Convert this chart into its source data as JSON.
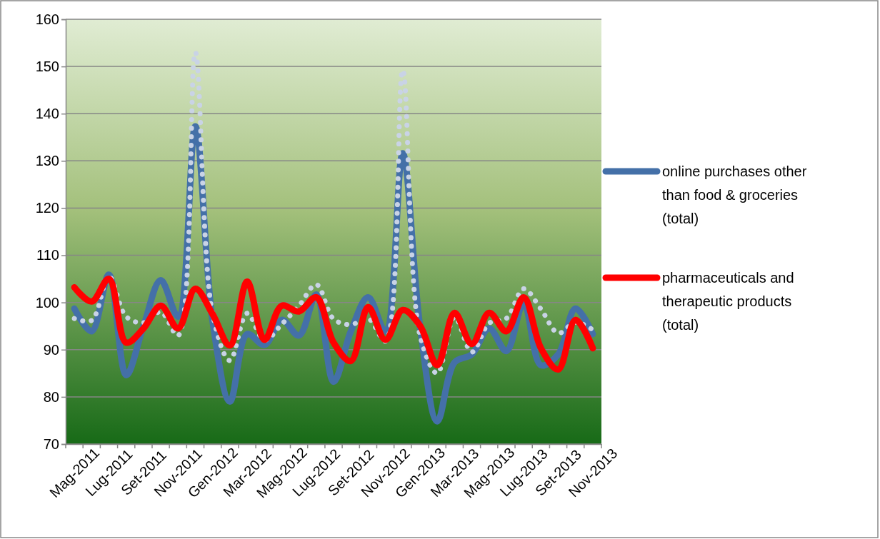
{
  "chart_data": {
    "type": "line",
    "categories": [
      "Mag-2011",
      null,
      "Lug-2011",
      null,
      "Set-2011",
      null,
      "Nov-2011",
      null,
      "Gen-2012",
      null,
      "Mar-2012",
      null,
      "Mag-2012",
      null,
      "Lug-2012",
      null,
      "Set-2012",
      null,
      "Nov-2012",
      null,
      "Gen-2013",
      null,
      "Mar-2013",
      null,
      "Mag-2013",
      null,
      "Lug-2013",
      null,
      "Set-2013",
      null,
      "Nov-2013"
    ],
    "series": [
      {
        "name": "online purchases other than food & groceries (total)",
        "color": "#4470a8",
        "line_style": "solid",
        "values": [
          98.7,
          93.9,
          105.9,
          84.6,
          95,
          104.7,
          97,
          137.3,
          96,
          79,
          93.3,
          91,
          96.3,
          93,
          101.7,
          83.2,
          93.9,
          101.1,
          93.9,
          131.6,
          95,
          74.8,
          87.3,
          89,
          94.5,
          89.7,
          99.9,
          86.7,
          89,
          98.7,
          93.3
        ]
      },
      {
        "color": "#c9d3e6",
        "line_style": "dotted",
        "values": [
          96.6,
          96.2,
          105.5,
          97,
          95.7,
          98,
          93,
          153,
          97.5,
          87.7,
          97.7,
          92,
          95.4,
          99.3,
          103.8,
          96.5,
          95.3,
          96.6,
          91.8,
          149.2,
          93,
          85,
          96.9,
          89.5,
          95.6,
          96.6,
          102.9,
          98.6,
          93.5,
          95.8,
          94.2
        ]
      },
      {
        "name": "pharmaceuticals and therapeutic products (total)",
        "color": "#ff0000",
        "line_style": "solid",
        "values": [
          103.2,
          100.2,
          105,
          91.5,
          94.5,
          99.3,
          94.5,
          102.9,
          97.5,
          90.9,
          104.4,
          92.1,
          99.3,
          98.1,
          101.1,
          91.5,
          87.6,
          99,
          92.1,
          98.4,
          95.1,
          86.7,
          97.8,
          91.2,
          97.8,
          93.9,
          101.1,
          90.3,
          85.8,
          96.3,
          90.3
        ]
      }
    ],
    "ylim": [
      70,
      160
    ],
    "yticks": [
      70,
      80,
      90,
      100,
      110,
      120,
      130,
      140,
      150,
      160
    ],
    "grid": "y",
    "legend": "right",
    "marker": "none"
  }
}
